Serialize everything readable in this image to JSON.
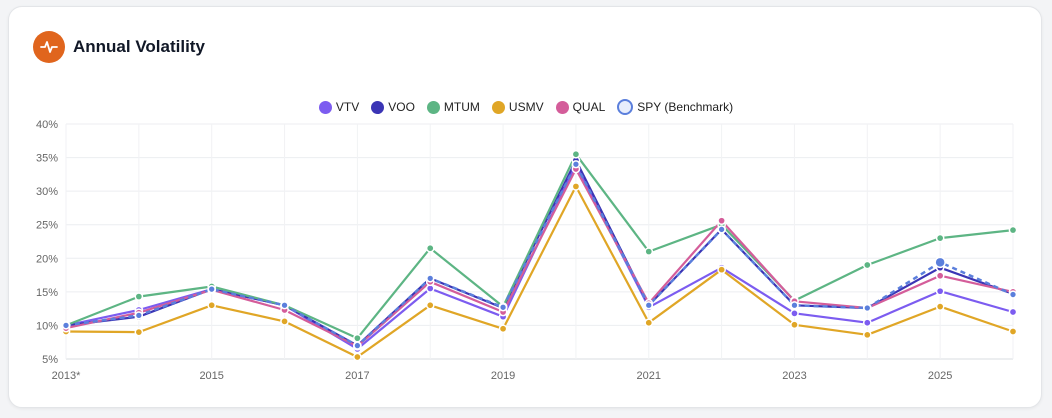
{
  "header": {
    "title": "Annual Volatility",
    "icon": "activity-pulse-icon",
    "icon_color": "#e0651d"
  },
  "chart_data": {
    "type": "line",
    "title": "Annual Volatility",
    "x": [
      "2013*",
      "2014",
      "2015",
      "2016",
      "2017",
      "2018",
      "2019",
      "2020",
      "2021",
      "2022",
      "2023",
      "2024",
      "2025",
      "2026"
    ],
    "x_tick_labels": [
      "2013*",
      "2015",
      "2017",
      "2019",
      "2021",
      "2023",
      "2025"
    ],
    "ylim": [
      5,
      40
    ],
    "y_ticks": [
      "5%",
      "10%",
      "15%",
      "20%",
      "25%",
      "30%",
      "35%",
      "40%"
    ],
    "y_tick_values": [
      5,
      10,
      15,
      20,
      25,
      30,
      35,
      40
    ],
    "grid": true,
    "legend_position": "top-center",
    "series": [
      {
        "name": "VTV",
        "color": "#7c5cf0",
        "dashed": false,
        "values": [
          10.0,
          12.3,
          15.4,
          13.0,
          6.5,
          15.5,
          11.3,
          34.0,
          12.7,
          18.6,
          11.8,
          10.4,
          15.1,
          12.0
        ]
      },
      {
        "name": "VOO",
        "color": "#3b35b5",
        "dashed": false,
        "values": [
          10.0,
          11.3,
          15.4,
          13.0,
          7.0,
          17.0,
          12.6,
          34.6,
          13.0,
          24.3,
          13.0,
          12.6,
          18.6,
          14.7
        ]
      },
      {
        "name": "MTUM",
        "color": "#5db584",
        "dashed": false,
        "values": [
          10.0,
          14.3,
          15.8,
          13.0,
          8.1,
          21.5,
          12.8,
          35.5,
          21.0,
          25.0,
          13.7,
          19.0,
          23.0,
          24.2
        ]
      },
      {
        "name": "USMV",
        "color": "#e0a626",
        "dashed": false,
        "values": [
          9.1,
          9.0,
          13.0,
          10.6,
          5.3,
          13.0,
          9.5,
          30.7,
          10.4,
          18.3,
          10.1,
          8.6,
          12.8,
          9.1
        ]
      },
      {
        "name": "QUAL",
        "color": "#d45d9a",
        "dashed": false,
        "values": [
          9.6,
          11.9,
          15.3,
          12.3,
          6.9,
          16.5,
          12.0,
          33.3,
          13.3,
          25.6,
          13.6,
          12.6,
          17.4,
          15.0
        ]
      },
      {
        "name": "SPY (Benchmark)",
        "color": "#5b7fdc",
        "dashed": true,
        "values": [
          10.0,
          11.5,
          15.4,
          13.0,
          7.0,
          17.0,
          12.7,
          34.0,
          13.0,
          24.3,
          13.0,
          12.6,
          19.4,
          14.6
        ]
      }
    ]
  }
}
